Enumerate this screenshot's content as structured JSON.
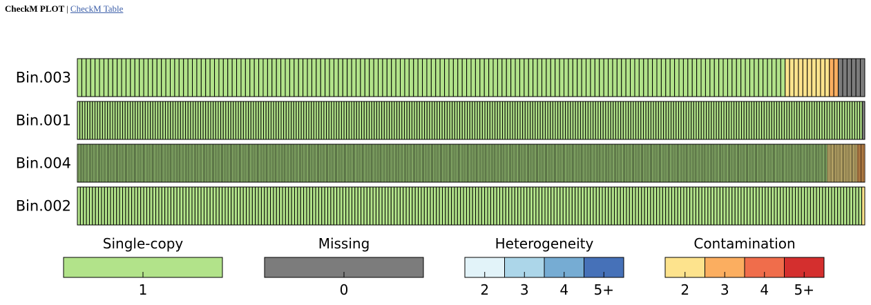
{
  "nav": {
    "title": "CheckM PLOT",
    "separator": "|",
    "link_label": "CheckM Table"
  },
  "colors": {
    "single_copy": "#b2e38a",
    "missing": "#7c7c7c",
    "heterogeneity": [
      "#e2f3f9",
      "#acd6e9",
      "#76acd3",
      "#4671b8"
    ],
    "contamination": [
      "#fde38d",
      "#fbae60",
      "#f06d4b",
      "#d42f2e"
    ]
  },
  "chart_data": {
    "type": "heatmap",
    "description_source": "CheckM marker gene plot; each row is a bin, each cell a marker gene colored by copy state",
    "bins": [
      {
        "name": "Bin.003",
        "single_copy": 160,
        "contamination": {
          "2": 10,
          "3": 2
        },
        "missing": 6
      },
      {
        "name": "Bin.001",
        "single_copy": 312,
        "contamination": {},
        "missing": 1
      },
      {
        "name": "Bin.004",
        "single_copy": 500,
        "contamination": {
          "2": 20,
          "3": 5
        },
        "missing": 0
      },
      {
        "name": "Bin.002",
        "single_copy": 260,
        "contamination": {
          "2": 1
        },
        "missing": 0
      }
    ],
    "legend": [
      {
        "title": "Single-copy",
        "ticks": [
          "1"
        ]
      },
      {
        "title": "Missing",
        "ticks": [
          "0"
        ]
      },
      {
        "title": "Heterogeneity",
        "ticks": [
          "2",
          "3",
          "4",
          "5+"
        ]
      },
      {
        "title": "Contamination",
        "ticks": [
          "2",
          "3",
          "4",
          "5+"
        ]
      }
    ]
  }
}
